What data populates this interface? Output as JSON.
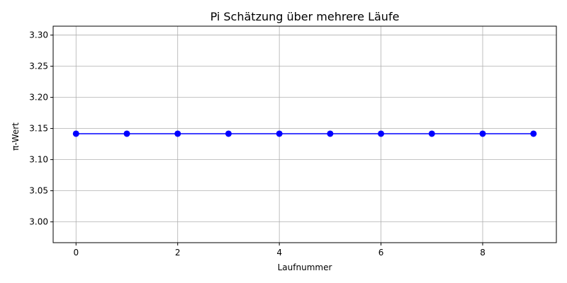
{
  "chart_data": {
    "type": "line",
    "title": "Pi Schätzung über mehrere Läufe",
    "xlabel": "Laufnummer",
    "ylabel": "π-Wert",
    "x": [
      0,
      1,
      2,
      3,
      4,
      5,
      6,
      7,
      8,
      9
    ],
    "series": [
      {
        "values": [
          3.1416,
          3.1416,
          3.1416,
          3.1416,
          3.1416,
          3.1416,
          3.1416,
          3.1416,
          3.1416,
          3.1416
        ],
        "color": "#0000ff",
        "marker": "circle"
      }
    ],
    "xlim": [
      -0.45,
      9.45
    ],
    "ylim": [
      2.9666,
      3.3143
    ],
    "xticks": [
      0,
      2,
      4,
      6,
      8
    ],
    "xtick_labels": [
      "0",
      "2",
      "4",
      "6",
      "8"
    ],
    "yticks": [
      3.0,
      3.05,
      3.1,
      3.15,
      3.2,
      3.25,
      3.3
    ],
    "ytick_labels": [
      "3.00",
      "3.05",
      "3.10",
      "3.15",
      "3.20",
      "3.25",
      "3.30"
    ],
    "grid": true,
    "grid_color": "#b0b0b0"
  }
}
